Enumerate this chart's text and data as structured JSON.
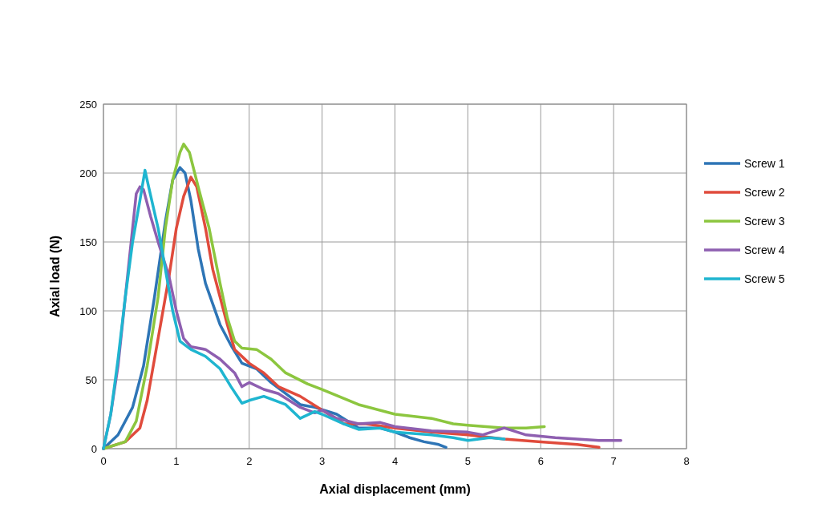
{
  "chart_data": {
    "type": "line",
    "xlabel": "Axial displacement (mm)",
    "ylabel": "Axial load (N)",
    "xlim": [
      0,
      8
    ],
    "xticks": [
      0,
      1,
      2,
      3,
      4,
      5,
      6,
      7,
      8
    ],
    "ylim": [
      0,
      250
    ],
    "yticks": [
      0,
      50,
      100,
      150,
      200,
      250
    ],
    "grid": true,
    "legend": "right",
    "line_style": "solid",
    "marker": "none",
    "series": [
      {
        "name": "Screw 1",
        "color": "#2e75b6",
        "x": [
          0,
          0.2,
          0.4,
          0.55,
          0.7,
          0.85,
          0.95,
          1.05,
          1.12,
          1.2,
          1.3,
          1.4,
          1.5,
          1.6,
          1.75,
          1.9,
          2.1,
          2.3,
          2.5,
          2.7,
          2.9,
          3.2,
          3.5,
          3.8,
          4.0,
          4.2,
          4.4,
          4.6,
          4.7
        ],
        "values": [
          0,
          10,
          30,
          60,
          110,
          165,
          195,
          204,
          200,
          180,
          145,
          120,
          105,
          90,
          75,
          62,
          58,
          48,
          40,
          32,
          30,
          25,
          15,
          15,
          12,
          8,
          5,
          3,
          1
        ]
      },
      {
        "name": "Screw 2",
        "color": "#e04b3c",
        "x": [
          0,
          0.3,
          0.5,
          0.6,
          0.7,
          0.8,
          0.9,
          1.0,
          1.1,
          1.2,
          1.28,
          1.4,
          1.5,
          1.6,
          1.7,
          1.8,
          2.0,
          2.2,
          2.4,
          2.7,
          3.0,
          3.3,
          3.6,
          4.0,
          4.5,
          5.0,
          5.5,
          6.0,
          6.5,
          6.8
        ],
        "values": [
          0,
          5,
          15,
          35,
          65,
          95,
          125,
          160,
          183,
          197,
          190,
          160,
          130,
          110,
          90,
          72,
          62,
          55,
          45,
          38,
          28,
          18,
          18,
          15,
          12,
          10,
          7,
          5,
          3,
          1
        ]
      },
      {
        "name": "Screw 3",
        "color": "#8cc63f",
        "x": [
          0,
          0.3,
          0.45,
          0.6,
          0.75,
          0.85,
          0.95,
          1.05,
          1.1,
          1.18,
          1.3,
          1.45,
          1.6,
          1.7,
          1.8,
          1.9,
          2.1,
          2.3,
          2.5,
          2.8,
          3.0,
          3.5,
          4.0,
          4.5,
          4.8,
          5.0,
          5.5,
          5.8,
          6.05
        ],
        "values": [
          0,
          5,
          20,
          60,
          110,
          160,
          195,
          215,
          221,
          215,
          190,
          160,
          120,
          95,
          78,
          73,
          72,
          65,
          55,
          47,
          43,
          32,
          25,
          22,
          18,
          17,
          15,
          15,
          16
        ]
      },
      {
        "name": "Screw 4",
        "color": "#8e5fb0",
        "x": [
          0,
          0.1,
          0.2,
          0.3,
          0.4,
          0.45,
          0.5,
          0.55,
          0.65,
          0.75,
          0.9,
          1.0,
          1.1,
          1.2,
          1.4,
          1.6,
          1.8,
          1.9,
          2.0,
          2.2,
          2.4,
          2.7,
          2.9,
          3.0,
          3.2,
          3.5,
          3.8,
          4.0,
          4.5,
          5.0,
          5.2,
          5.5,
          5.8,
          6.2,
          6.5,
          6.8,
          7.1
        ],
        "values": [
          0,
          25,
          60,
          110,
          160,
          185,
          190,
          188,
          168,
          150,
          125,
          100,
          80,
          74,
          72,
          65,
          55,
          45,
          48,
          43,
          40,
          30,
          26,
          28,
          22,
          18,
          19,
          16,
          13,
          12,
          10,
          15,
          10,
          8,
          7,
          6,
          6
        ]
      },
      {
        "name": "Screw 5",
        "color": "#1fb5d0",
        "x": [
          0,
          0.1,
          0.2,
          0.3,
          0.4,
          0.5,
          0.57,
          0.62,
          0.75,
          0.85,
          0.95,
          1.05,
          1.2,
          1.4,
          1.6,
          1.75,
          1.9,
          2.0,
          2.2,
          2.5,
          2.7,
          2.9,
          3.0,
          3.3,
          3.5,
          3.8,
          4.0,
          4.5,
          4.8,
          5.0,
          5.3,
          5.5
        ],
        "values": [
          0,
          25,
          65,
          110,
          150,
          180,
          202,
          190,
          160,
          130,
          100,
          78,
          72,
          67,
          58,
          45,
          33,
          35,
          38,
          32,
          22,
          27,
          25,
          18,
          14,
          15,
          12,
          10,
          8,
          6,
          8,
          7
        ]
      }
    ]
  }
}
